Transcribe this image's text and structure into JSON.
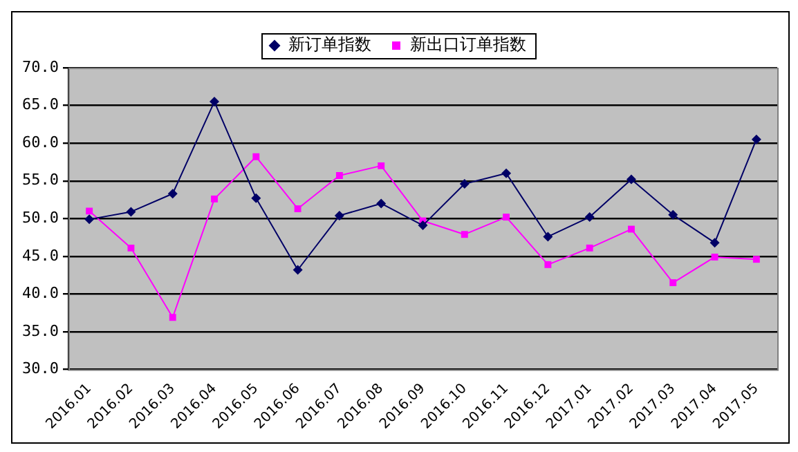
{
  "chart_data": {
    "type": "line",
    "categories": [
      "2016.01",
      "2016.02",
      "2016.03",
      "2016.04",
      "2016.05",
      "2016.06",
      "2016.07",
      "2016.08",
      "2016.09",
      "2016.10",
      "2016.11",
      "2016.12",
      "2017.01",
      "2017.02",
      "2017.03",
      "2017.04",
      "2017.05"
    ],
    "series": [
      {
        "name": "新订单指数",
        "color": "#000066",
        "marker": "diamond",
        "values": [
          49.9,
          50.9,
          53.3,
          65.5,
          52.7,
          43.2,
          50.4,
          52.0,
          49.1,
          54.6,
          56.0,
          47.6,
          50.2,
          55.2,
          50.5,
          46.8,
          60.5
        ]
      },
      {
        "name": "新出口订单指数",
        "color": "#ff00ff",
        "marker": "square",
        "values": [
          51.0,
          46.1,
          36.9,
          52.6,
          58.2,
          51.3,
          55.7,
          57.0,
          49.7,
          47.9,
          50.2,
          43.9,
          46.1,
          48.6,
          41.5,
          44.9,
          44.6
        ]
      }
    ],
    "ylim": [
      30,
      70
    ],
    "yticks": [
      {
        "value": 30,
        "label": "30.0"
      },
      {
        "value": 35,
        "label": "35.0"
      },
      {
        "value": 40,
        "label": "40.0"
      },
      {
        "value": 45,
        "label": "45.0"
      },
      {
        "value": 50,
        "label": "50.0"
      },
      {
        "value": 55,
        "label": "55.0"
      },
      {
        "value": 60,
        "label": "60.0"
      },
      {
        "value": 65,
        "label": "65.0"
      },
      {
        "value": 70,
        "label": "70.0"
      }
    ],
    "grid": "y",
    "legend": "top",
    "line_style": "solid"
  }
}
